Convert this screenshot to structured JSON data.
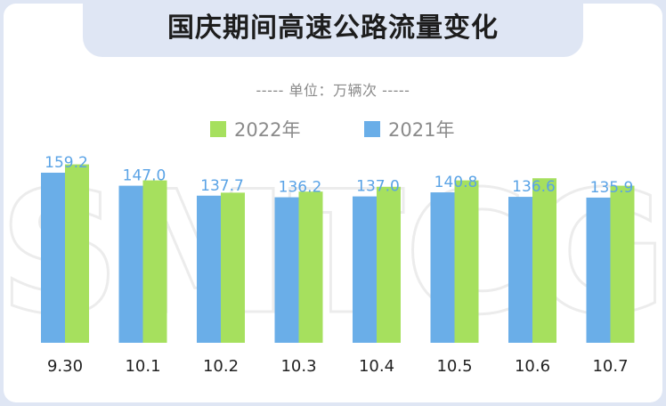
{
  "title": "国庆期间高速公路流量变化",
  "unit_text": "----- 单位：万辆次 -----",
  "watermark": "SMTCG",
  "colors": {
    "series_2022": "#a6e05e",
    "series_2021": "#6aaee8",
    "value_label": "#5aa3e6"
  },
  "legend": [
    {
      "name": "2022年",
      "color": "#a6e05e"
    },
    {
      "name": "2021年",
      "color": "#6aaee8"
    }
  ],
  "chart_data": {
    "type": "bar",
    "categories": [
      "9.30",
      "10.1",
      "10.2",
      "10.3",
      "10.4",
      "10.5",
      "10.6",
      "10.7"
    ],
    "series": [
      {
        "name": "2021年",
        "values": [
          159.2,
          147.0,
          137.7,
          136.2,
          137.0,
          140.8,
          136.6,
          135.9
        ],
        "labeled": true
      },
      {
        "name": "2022年",
        "values": [
          167.0,
          152.0,
          140.5,
          141.5,
          146.0,
          152.0,
          154.0,
          147.0
        ],
        "labeled": false
      }
    ],
    "data_labels": [
      "159.2",
      "147.0",
      "137.7",
      "136.2",
      "137.0",
      "140.8",
      "136.6",
      "135.9"
    ],
    "ylim": [
      0,
      167
    ],
    "grid": false,
    "legend_position": "top-center"
  }
}
